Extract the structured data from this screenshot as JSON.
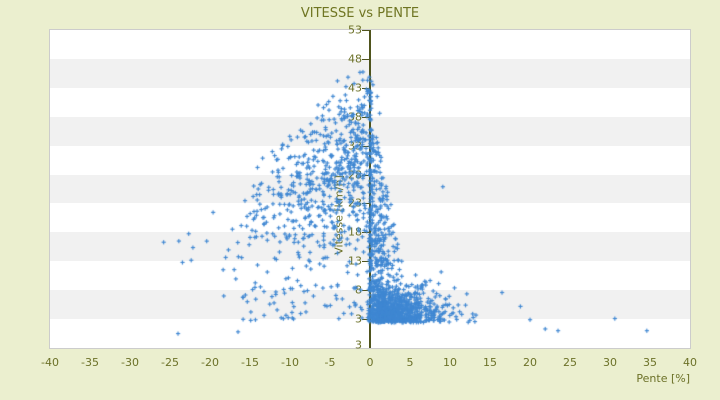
{
  "window": {
    "title": "VITESSE vs PENTE"
  },
  "chart_data": {
    "type": "scatter",
    "title": "VITESSE vs PENTE",
    "xlabel": "Pente [%]",
    "ylabel": "Vitesse [km/h]",
    "xlim": [
      -40,
      40
    ],
    "ylim": [
      -2,
      53
    ],
    "x_ticks": [
      -40,
      -35,
      -30,
      -25,
      -20,
      -15,
      -10,
      -5,
      0,
      5,
      10,
      15,
      20,
      25,
      30,
      35,
      40
    ],
    "y_ticks": [
      53,
      48,
      43,
      38,
      33,
      28,
      23,
      18,
      13,
      8,
      3
    ],
    "y_axis_bottom_label": "3",
    "grid": "horizontal-bands-every-5-units",
    "band_colors": [
      "#ffffff",
      "#f1f1f1"
    ],
    "legend": "none",
    "marker": "plus",
    "points_estimate": 2000,
    "colors": {
      "marker": "#3f87d2",
      "axis_line": "#4f541d",
      "tick_text": "#6c7128",
      "title_text": "#6f7522",
      "page_bg": "#ebefcf",
      "plot_bg": "#ffffff",
      "plot_border": "#cccccc"
    },
    "seed": 7,
    "distribution_clusters": [
      {
        "kind": "fan",
        "name": "negative-slope-fan",
        "n": 630,
        "desc": "Pente -26..0 : speeds 3 to a ceiling that falls from ~48 km/h near 0% to ~16 km/h at -25%",
        "x_sigma": 7.0,
        "x_offset": 0.3,
        "x_min": -26,
        "ymax_intercept": 50.5,
        "ymax_slope": 1.35,
        "y_min": 2.6,
        "y_skew": 0.72
      },
      {
        "kind": "column",
        "name": "zero-slope-column",
        "n": 160,
        "desc": "dense vertical strip at Pente ~0, speeds 2.6-45",
        "x_mu": 0.05,
        "x_sigma": 0.16,
        "x_min": -0.35,
        "x_max": 0.55,
        "y_min": 2.6,
        "y_max": 45,
        "y_pow": 1.25
      },
      {
        "kind": "hug",
        "name": "small-positive-hug",
        "n": 430,
        "desc": "Pente 0-5, speeds up to ~38 narrowing quickly with slope",
        "x_offset": 0.15,
        "x_sigma": 1.5,
        "x_max": 5,
        "y_min": 2.6,
        "y_max": 38,
        "y_pow": 2.0,
        "cap_intercept": 40,
        "cap_slope": -6.5
      },
      {
        "kind": "blob",
        "name": "positive-slope-low-speed-blob",
        "n": 720,
        "desc": "dense cloud Pente 1-17, speeds mostly 2.5-9",
        "x_offset": 0.8,
        "x_sigma": 4.0,
        "x_max": 17.5,
        "y_offset": 2.4,
        "y_sigma": 2.7,
        "y_max": 13
      },
      {
        "kind": "uniform",
        "name": "sparse-bottom-left",
        "n": 55,
        "desc": "scattered slow points on negative slopes",
        "x_min": -16,
        "x_max": -1,
        "y_min": 2.6,
        "y_max": 9
      }
    ],
    "outliers": [
      [
        30.6,
        3.1
      ],
      [
        34.6,
        1.0
      ],
      [
        23.5,
        1.0
      ],
      [
        21.9,
        1.3
      ],
      [
        20.0,
        2.9
      ],
      [
        18.8,
        5.2
      ],
      [
        16.5,
        7.6
      ],
      [
        9.1,
        25.9
      ],
      [
        0.9,
        41.5
      ],
      [
        1.2,
        38.6
      ],
      [
        -23.9,
        16.5
      ],
      [
        -25.8,
        16.3
      ],
      [
        -24.0,
        0.5
      ],
      [
        -16.5,
        0.8
      ]
    ]
  }
}
